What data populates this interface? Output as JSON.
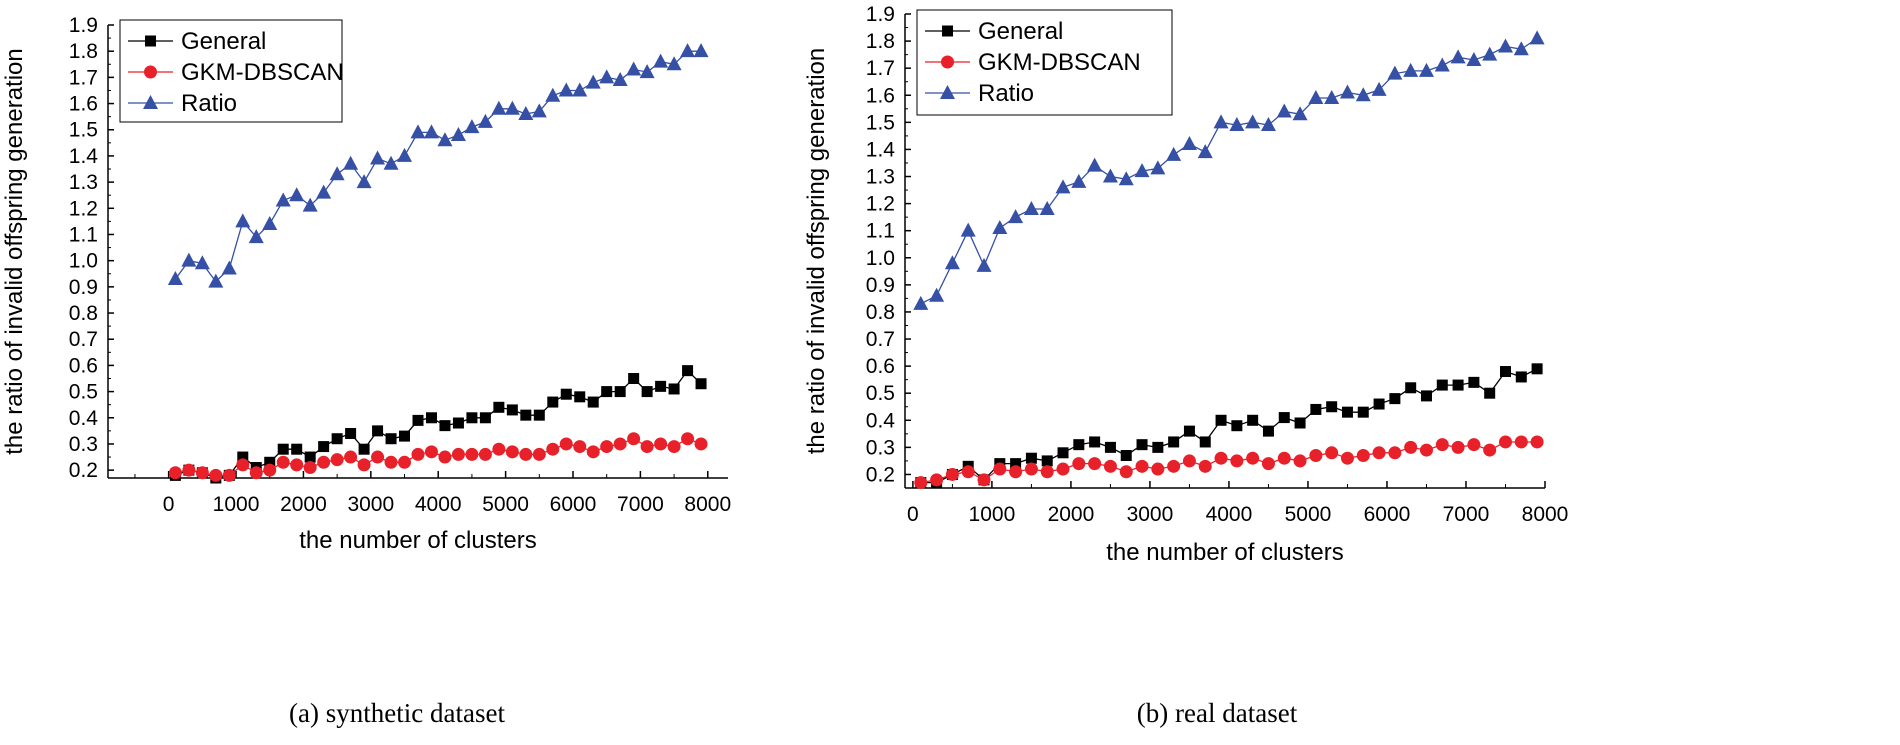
{
  "chart_data": [
    {
      "type": "line",
      "caption": "(a) synthetic dataset",
      "xlabel": "the number of clusters",
      "ylabel": "the ratio of invalid offspring generation",
      "xlim": [
        -900,
        8300
      ],
      "ylim": [
        0.17,
        1.9
      ],
      "xticks": [
        0,
        1000,
        2000,
        3000,
        4000,
        5000,
        6000,
        7000,
        8000
      ],
      "xtick_labels": [
        "0",
        "1000",
        "2000",
        "3000",
        "4000",
        "5000",
        "6000",
        "7000",
        "8000"
      ],
      "yticks": [
        0.2,
        0.3,
        0.4,
        0.5,
        0.6,
        0.7,
        0.8,
        0.9,
        1.0,
        1.1,
        1.2,
        1.3,
        1.4,
        1.5,
        1.6,
        1.7,
        1.8,
        1.9
      ],
      "ytick_labels": [
        "0.2",
        "0.3",
        "0.4",
        "0.5",
        "0.6",
        "0.7",
        "0.8",
        "0.9",
        "1.0",
        "1.1",
        "1.2",
        "1.3",
        "1.4",
        "1.5",
        "1.6",
        "1.7",
        "1.8",
        "1.9"
      ],
      "legend": {
        "position": "top-left"
      },
      "x": [
        100,
        300,
        500,
        700,
        900,
        1100,
        1300,
        1500,
        1700,
        1900,
        2100,
        2300,
        2500,
        2700,
        2900,
        3100,
        3300,
        3500,
        3700,
        3900,
        4100,
        4300,
        4500,
        4700,
        4900,
        5100,
        5300,
        5500,
        5700,
        5900,
        6100,
        6300,
        6500,
        6700,
        6900,
        7100,
        7300,
        7500,
        7700,
        7900
      ],
      "series": [
        {
          "name": "General",
          "color": "#000000",
          "marker": "square",
          "values": [
            0.18,
            0.2,
            0.19,
            0.17,
            0.18,
            0.25,
            0.21,
            0.23,
            0.28,
            0.28,
            0.25,
            0.29,
            0.32,
            0.34,
            0.28,
            0.35,
            0.32,
            0.33,
            0.39,
            0.4,
            0.37,
            0.38,
            0.4,
            0.4,
            0.44,
            0.43,
            0.41,
            0.41,
            0.46,
            0.49,
            0.48,
            0.46,
            0.5,
            0.5,
            0.55,
            0.5,
            0.52,
            0.51,
            0.58,
            0.53
          ]
        },
        {
          "name": "GKM-DBSCAN",
          "color": "#e8202a",
          "marker": "circle",
          "values": [
            0.19,
            0.2,
            0.19,
            0.18,
            0.18,
            0.22,
            0.19,
            0.2,
            0.23,
            0.22,
            0.21,
            0.23,
            0.24,
            0.25,
            0.22,
            0.25,
            0.23,
            0.23,
            0.26,
            0.27,
            0.25,
            0.26,
            0.26,
            0.26,
            0.28,
            0.27,
            0.26,
            0.26,
            0.28,
            0.3,
            0.29,
            0.27,
            0.29,
            0.3,
            0.32,
            0.29,
            0.3,
            0.29,
            0.32,
            0.3
          ]
        },
        {
          "name": "Ratio",
          "color": "#3550a5",
          "marker": "triangle",
          "values": [
            0.93,
            1.0,
            0.99,
            0.92,
            0.97,
            1.15,
            1.09,
            1.14,
            1.23,
            1.25,
            1.21,
            1.26,
            1.33,
            1.37,
            1.3,
            1.39,
            1.37,
            1.4,
            1.49,
            1.49,
            1.46,
            1.48,
            1.51,
            1.53,
            1.58,
            1.58,
            1.56,
            1.57,
            1.63,
            1.65,
            1.65,
            1.68,
            1.7,
            1.69,
            1.73,
            1.72,
            1.76,
            1.75,
            1.8,
            1.8
          ]
        }
      ]
    },
    {
      "type": "line",
      "caption": "(b) real dataset",
      "xlabel": "the number of clusters",
      "ylabel": "the ratio of invalid offspring generation",
      "xlim": [
        -100,
        8000
      ],
      "ylim": [
        0.15,
        1.9
      ],
      "xticks": [
        0,
        1000,
        2000,
        3000,
        4000,
        5000,
        6000,
        7000,
        8000
      ],
      "xtick_labels": [
        "0",
        "1000",
        "2000",
        "3000",
        "4000",
        "5000",
        "6000",
        "7000",
        "8000"
      ],
      "yticks": [
        0.2,
        0.3,
        0.4,
        0.5,
        0.6,
        0.7,
        0.8,
        0.9,
        1.0,
        1.1,
        1.2,
        1.3,
        1.4,
        1.5,
        1.6,
        1.7,
        1.8,
        1.9
      ],
      "ytick_labels": [
        "0.2",
        "0.3",
        "0.4",
        "0.5",
        "0.6",
        "0.7",
        "0.8",
        "0.9",
        "1.0",
        "1.1",
        "1.2",
        "1.3",
        "1.4",
        "1.5",
        "1.6",
        "1.7",
        "1.8",
        "1.9"
      ],
      "legend": {
        "position": "top-left"
      },
      "x": [
        100,
        300,
        500,
        700,
        900,
        1100,
        1300,
        1500,
        1700,
        1900,
        2100,
        2300,
        2500,
        2700,
        2900,
        3100,
        3300,
        3500,
        3700,
        3900,
        4100,
        4300,
        4500,
        4700,
        4900,
        5100,
        5300,
        5500,
        5700,
        5900,
        6100,
        6300,
        6500,
        6700,
        6900,
        7100,
        7300,
        7500,
        7700,
        7900
      ],
      "series": [
        {
          "name": "General",
          "color": "#000000",
          "marker": "square",
          "values": [
            0.17,
            0.17,
            0.2,
            0.23,
            0.18,
            0.24,
            0.24,
            0.26,
            0.25,
            0.28,
            0.31,
            0.32,
            0.3,
            0.27,
            0.31,
            0.3,
            0.32,
            0.36,
            0.32,
            0.4,
            0.38,
            0.4,
            0.36,
            0.41,
            0.39,
            0.44,
            0.45,
            0.43,
            0.43,
            0.46,
            0.48,
            0.52,
            0.49,
            0.53,
            0.53,
            0.54,
            0.5,
            0.58,
            0.56,
            0.59
          ]
        },
        {
          "name": "GKM-DBSCAN",
          "color": "#e8202a",
          "marker": "circle",
          "values": [
            0.17,
            0.18,
            0.2,
            0.21,
            0.18,
            0.22,
            0.21,
            0.22,
            0.21,
            0.22,
            0.24,
            0.24,
            0.23,
            0.21,
            0.23,
            0.22,
            0.23,
            0.25,
            0.23,
            0.26,
            0.25,
            0.26,
            0.24,
            0.26,
            0.25,
            0.27,
            0.28,
            0.26,
            0.27,
            0.28,
            0.28,
            0.3,
            0.29,
            0.31,
            0.3,
            0.31,
            0.29,
            0.32,
            0.32,
            0.32
          ]
        },
        {
          "name": "Ratio",
          "color": "#3550a5",
          "marker": "triangle",
          "values": [
            0.83,
            0.86,
            0.98,
            1.1,
            0.97,
            1.11,
            1.15,
            1.18,
            1.18,
            1.26,
            1.28,
            1.34,
            1.3,
            1.29,
            1.32,
            1.33,
            1.38,
            1.42,
            1.39,
            1.5,
            1.49,
            1.5,
            1.49,
            1.54,
            1.53,
            1.59,
            1.59,
            1.61,
            1.6,
            1.62,
            1.68,
            1.69,
            1.69,
            1.71,
            1.74,
            1.73,
            1.75,
            1.78,
            1.77,
            1.81
          ]
        }
      ]
    }
  ]
}
